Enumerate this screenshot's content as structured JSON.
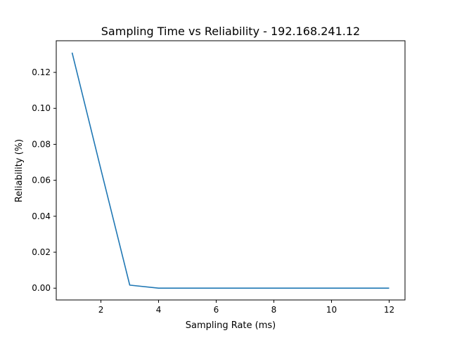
{
  "chart_data": {
    "type": "line",
    "title": "Sampling Time vs Reliability - 192.168.241.12",
    "xlabel": "Sampling Rate (ms)",
    "ylabel": "Reliability (%)",
    "xlim": [
      0.45,
      12.55
    ],
    "ylim": [
      -0.00655,
      0.1376
    ],
    "x_ticks": [
      2,
      4,
      6,
      8,
      10,
      12
    ],
    "x_tick_labels": [
      "2",
      "4",
      "6",
      "8",
      "10",
      "12"
    ],
    "y_ticks": [
      0.0,
      0.02,
      0.04,
      0.06,
      0.08,
      0.1,
      0.12
    ],
    "y_tick_labels": [
      "0.00",
      "0.02",
      "0.04",
      "0.06",
      "0.08",
      "0.10",
      "0.12"
    ],
    "grid": false,
    "legend": "none",
    "series": [
      {
        "color": "#1f77b4",
        "x": [
          1,
          2,
          3,
          4,
          5,
          6,
          7,
          8,
          9,
          10,
          11,
          12
        ],
        "y": [
          0.131,
          0.066,
          0.0017,
          0.0,
          0.0,
          0.0,
          0.0,
          0.0,
          0.0,
          0.0,
          0.0,
          0.0
        ]
      }
    ]
  }
}
